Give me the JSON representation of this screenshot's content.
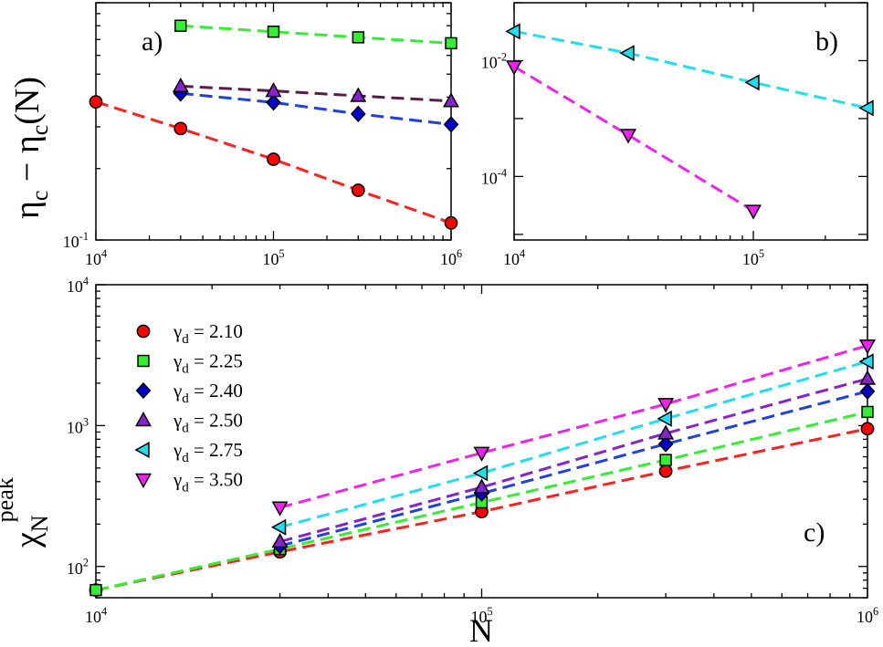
{
  "chart_data": [
    {
      "id": "a",
      "type": "scatter",
      "panel_label": "a)",
      "ylabel_main": "η",
      "ylabel_sub1": "c",
      "ylabel_sep": " − η",
      "ylabel_sub2": "c",
      "ylabel_tail": "(N)",
      "xscale": "log",
      "yscale": "log",
      "xlim": [
        10000,
        1000000
      ],
      "ylim": [
        0.1,
        1.0
      ],
      "x_tick_labels": [
        {
          "base": "10",
          "exp": "4",
          "value": 10000
        },
        {
          "base": "10",
          "exp": "5",
          "value": 100000
        },
        {
          "base": "10",
          "exp": "6",
          "value": 1000000
        }
      ],
      "y_tick_labels": [
        {
          "base": "10",
          "exp": "-1",
          "value": 0.1
        }
      ],
      "series": [
        {
          "name": "γd = 2.10",
          "marker": "circle",
          "color": "#ff0000",
          "line_color": "#ff2020",
          "x": [
            10000,
            30000,
            100000,
            300000,
            1000000
          ],
          "y": [
            0.382,
            0.295,
            0.219,
            0.162,
            0.118
          ]
        },
        {
          "name": "γd = 2.25",
          "marker": "square",
          "color": "#33ee33",
          "line_color": "#33ee33",
          "x": [
            30000,
            100000,
            300000,
            1000000
          ],
          "y": [
            0.8,
            0.755,
            0.715,
            0.675
          ]
        },
        {
          "name": "γd = 2.40",
          "marker": "diamond",
          "color": "#0000cc",
          "line_color": "#2040e0",
          "x": [
            30000,
            100000,
            300000,
            1000000
          ],
          "y": [
            0.415,
            0.38,
            0.34,
            0.307
          ]
        },
        {
          "name": "γd = 2.50",
          "marker": "triangle-up",
          "color": "#8822cc",
          "line_color": "#5a1a4a",
          "x": [
            30000,
            100000,
            300000,
            1000000
          ],
          "y": [
            0.445,
            0.425,
            0.405,
            0.385
          ]
        }
      ]
    },
    {
      "id": "b",
      "type": "scatter",
      "panel_label": "b)",
      "xscale": "log",
      "yscale": "log",
      "xlim": [
        10000,
        300000
      ],
      "ylim": [
        8e-06,
        0.1
      ],
      "x_tick_labels": [
        {
          "base": "10",
          "exp": "4",
          "value": 10000
        },
        {
          "base": "10",
          "exp": "5",
          "value": 100000
        }
      ],
      "y_tick_labels": [
        {
          "base": "10",
          "exp": "-2",
          "value": 0.01
        },
        {
          "base": "10",
          "exp": "-4",
          "value": 0.0001
        }
      ],
      "series": [
        {
          "name": "γd = 2.75",
          "marker": "triangle-left",
          "color": "#22ddee",
          "line_color": "#22ddee",
          "x": [
            10000,
            30000,
            100000,
            300000
          ],
          "y": [
            0.032,
            0.0135,
            0.0042,
            0.00152
          ]
        },
        {
          "name": "γd = 3.50",
          "marker": "triangle-down",
          "color": "#ee22ee",
          "line_color": "#ee22ee",
          "x": [
            10000,
            30000,
            100000
          ],
          "y": [
            0.0079,
            0.00052,
            2.55e-05
          ]
        }
      ]
    },
    {
      "id": "c",
      "type": "scatter",
      "panel_label": "c)",
      "xlabel": "N",
      "ylabel_main": "χ",
      "ylabel_sub": "N",
      "ylabel_sup": "peak",
      "xscale": "log",
      "yscale": "log",
      "xlim": [
        10000,
        1000000
      ],
      "ylim": [
        60,
        10000
      ],
      "x_tick_labels": [
        {
          "base": "10",
          "exp": "4",
          "value": 10000
        },
        {
          "base": "10",
          "exp": "5",
          "value": 100000
        },
        {
          "base": "10",
          "exp": "6",
          "value": 1000000
        }
      ],
      "y_tick_labels": [
        {
          "base": "10",
          "exp": "4",
          "value": 10000
        },
        {
          "base": "10",
          "exp": "3",
          "value": 1000
        },
        {
          "base": "10",
          "exp": "2",
          "value": 100
        }
      ],
      "legend_position": "top-left",
      "legend": [
        {
          "symbol": "γ",
          "sub": "d",
          "text": " = 2.10",
          "marker": "circle",
          "color": "#ff0000"
        },
        {
          "symbol": "γ",
          "sub": "d",
          "text": " = 2.25",
          "marker": "square",
          "color": "#33ee33"
        },
        {
          "symbol": "γ",
          "sub": "d",
          "text": " = 2.40",
          "marker": "diamond",
          "color": "#0000cc"
        },
        {
          "symbol": "γ",
          "sub": "d",
          "text": " = 2.50",
          "marker": "triangle-up",
          "color": "#8822cc"
        },
        {
          "symbol": "γ",
          "sub": "d",
          "text": " = 2.75",
          "marker": "triangle-left",
          "color": "#22ddee"
        },
        {
          "symbol": "γ",
          "sub": "d",
          "text": " = 3.50",
          "marker": "triangle-down",
          "color": "#ee22ee"
        }
      ],
      "series": [
        {
          "name": "γd = 2.10",
          "marker": "circle",
          "color": "#ff0000",
          "line_color": "#ff2020",
          "x": [
            10000,
            30000,
            100000,
            300000,
            1000000
          ],
          "y": [
            68,
            127,
            245,
            475,
            950
          ]
        },
        {
          "name": "γd = 2.25",
          "marker": "square",
          "color": "#33ee33",
          "line_color": "#33ee33",
          "x": [
            10000,
            30000,
            100000,
            300000,
            1000000
          ],
          "y": [
            68,
            133,
            285,
            570,
            1250
          ]
        },
        {
          "name": "γd = 2.40",
          "marker": "diamond",
          "color": "#0000cc",
          "line_color": "#2040e0",
          "x": [
            30000,
            100000,
            300000,
            1000000
          ],
          "y": [
            140,
            330,
            740,
            1750
          ]
        },
        {
          "name": "γd = 2.50",
          "marker": "triangle-up",
          "color": "#8822cc",
          "line_color": "#8822cc",
          "x": [
            30000,
            100000,
            300000,
            1000000
          ],
          "y": [
            150,
            365,
            880,
            2150
          ]
        },
        {
          "name": "γd = 2.75",
          "marker": "triangle-left",
          "color": "#22ddee",
          "line_color": "#22ddee",
          "x": [
            30000,
            100000,
            300000,
            1000000
          ],
          "y": [
            190,
            460,
            1120,
            2850
          ]
        },
        {
          "name": "γd = 3.50",
          "marker": "triangle-down",
          "color": "#ee22ee",
          "line_color": "#ee22ee",
          "x": [
            30000,
            100000,
            300000,
            1000000
          ],
          "y": [
            262,
            640,
            1420,
            3700
          ]
        }
      ]
    }
  ]
}
